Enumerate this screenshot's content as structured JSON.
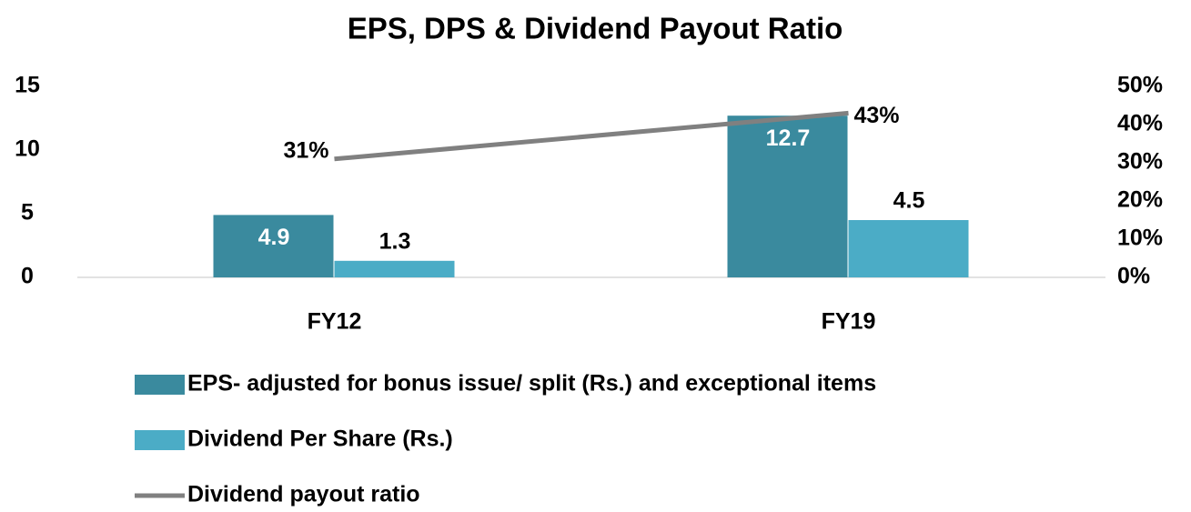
{
  "chart_data": {
    "type": "bar",
    "title": "EPS, DPS & Dividend Payout Ratio",
    "categories": [
      "FY12",
      "FY19"
    ],
    "series": [
      {
        "name": "EPS- adjusted for bonus issue/ split (Rs.) and exceptional items",
        "type": "bar",
        "color": "#3a8a9e",
        "values": [
          4.9,
          12.7
        ]
      },
      {
        "name": "Dividend Per Share (Rs.)",
        "type": "bar",
        "color": "#4bacc6",
        "values": [
          1.3,
          4.5
        ]
      },
      {
        "name": "Dividend payout ratio",
        "type": "line",
        "axis": "y2",
        "color": "#808080",
        "values": [
          31,
          43
        ],
        "value_labels": [
          "31%",
          "43%"
        ]
      }
    ],
    "ylim": [
      0,
      15
    ],
    "yticks": [
      0,
      5,
      10,
      15
    ],
    "y2lim": [
      0,
      50
    ],
    "y2ticks": [
      {
        "value": 0,
        "label": "0%"
      },
      {
        "value": 10,
        "label": "10%"
      },
      {
        "value": 20,
        "label": "20%"
      },
      {
        "value": 30,
        "label": "30%"
      },
      {
        "value": 40,
        "label": "40%"
      },
      {
        "value": 50,
        "label": "50%"
      }
    ],
    "legend": "bottom",
    "grid": false
  }
}
